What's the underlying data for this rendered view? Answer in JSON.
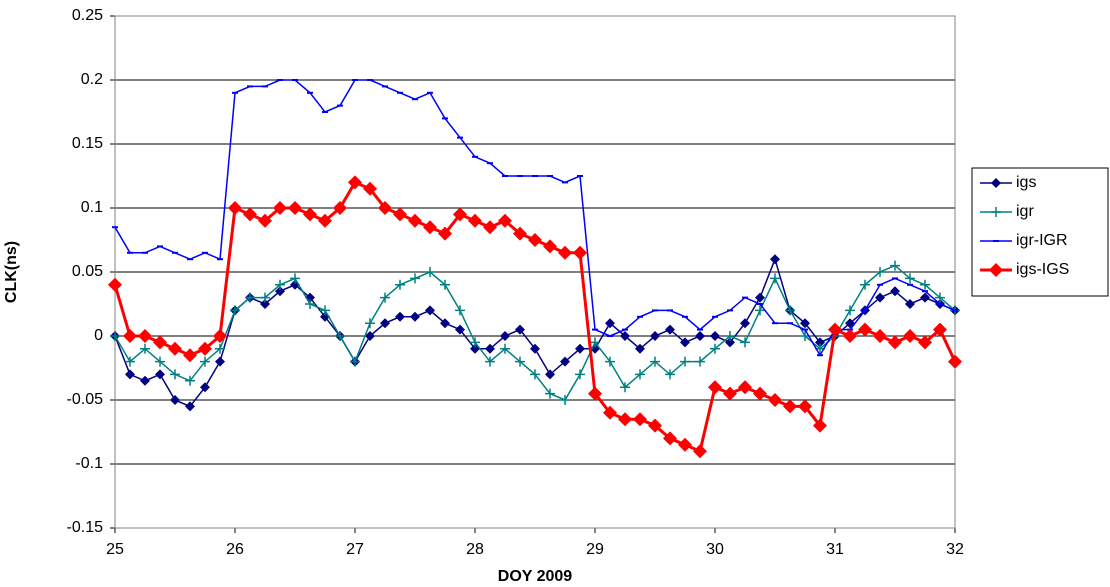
{
  "chart_data": {
    "type": "line",
    "xlabel": "DOY 2009",
    "ylabel": "CLK(ns)",
    "x": [
      25,
      25.125,
      25.25,
      25.375,
      25.5,
      25.625,
      25.75,
      25.875,
      26,
      26.125,
      26.25,
      26.375,
      26.5,
      26.625,
      26.75,
      26.875,
      27,
      27.125,
      27.25,
      27.375,
      27.5,
      27.625,
      27.75,
      27.875,
      28,
      28.125,
      28.25,
      28.375,
      28.5,
      28.625,
      28.75,
      28.875,
      29,
      29.125,
      29.25,
      29.375,
      29.5,
      29.625,
      29.75,
      29.875,
      30,
      30.125,
      30.25,
      30.375,
      30.5,
      30.625,
      30.75,
      30.875,
      31,
      31.125,
      31.25,
      31.375,
      31.5,
      31.625,
      31.75,
      31.875,
      32
    ],
    "series": [
      {
        "name": "igs",
        "color": "#000080",
        "marker": "diamond",
        "values": [
          0,
          -0.03,
          -0.035,
          -0.03,
          -0.05,
          -0.055,
          -0.04,
          -0.02,
          0.02,
          0.03,
          0.025,
          0.035,
          0.04,
          0.03,
          0.015,
          0,
          -0.02,
          0,
          0.01,
          0.015,
          0.015,
          0.02,
          0.01,
          0.005,
          -0.01,
          -0.01,
          0,
          0.005,
          -0.01,
          -0.03,
          -0.02,
          -0.01,
          -0.01,
          0.01,
          0,
          -0.01,
          0,
          0.005,
          -0.005,
          0,
          0,
          -0.005,
          0.01,
          0.03,
          0.06,
          0.02,
          0.01,
          -0.005,
          0,
          0.01,
          0.02,
          0.03,
          0.035,
          0.025,
          0.03,
          0.025,
          0.02
        ]
      },
      {
        "name": "igr",
        "color": "#008080",
        "marker": "plus",
        "values": [
          0,
          -0.02,
          -0.01,
          -0.02,
          -0.03,
          -0.035,
          -0.02,
          -0.01,
          0.02,
          0.03,
          0.03,
          0.04,
          0.045,
          0.025,
          0.02,
          0,
          -0.02,
          0.01,
          0.03,
          0.04,
          0.045,
          0.05,
          0.04,
          0.02,
          -0.005,
          -0.02,
          -0.01,
          -0.02,
          -0.03,
          -0.045,
          -0.05,
          -0.03,
          -0.005,
          -0.02,
          -0.04,
          -0.03,
          -0.02,
          -0.03,
          -0.02,
          -0.02,
          -0.01,
          0,
          -0.005,
          0.02,
          0.045,
          0.02,
          0,
          -0.01,
          0,
          0.02,
          0.04,
          0.05,
          0.055,
          0.045,
          0.04,
          0.03,
          0.02
        ]
      },
      {
        "name": "igr-IGR",
        "color": "#0000ff",
        "marker": "dash",
        "values": [
          0.085,
          0.065,
          0.065,
          0.07,
          0.065,
          0.06,
          0.065,
          0.06,
          0.19,
          0.195,
          0.195,
          0.2,
          0.2,
          0.19,
          0.175,
          0.18,
          0.2,
          0.2,
          0.195,
          0.19,
          0.185,
          0.19,
          0.17,
          0.155,
          0.14,
          0.135,
          0.125,
          0.125,
          0.125,
          0.125,
          0.12,
          0.125,
          0.005,
          0,
          0.005,
          0.015,
          0.02,
          0.02,
          0.015,
          0.005,
          0.015,
          0.02,
          0.03,
          0.025,
          0.01,
          0.01,
          0.005,
          -0.015,
          0.005,
          0.005,
          0.02,
          0.04,
          0.045,
          0.04,
          0.035,
          0.025,
          0.02
        ]
      },
      {
        "name": "igs-IGS",
        "color": "#ff0000",
        "marker": "diamond",
        "values": [
          0.04,
          0,
          0,
          -0.005,
          -0.01,
          -0.015,
          -0.01,
          0,
          0.1,
          0.095,
          0.09,
          0.1,
          0.1,
          0.095,
          0.09,
          0.1,
          0.12,
          0.115,
          0.1,
          0.095,
          0.09,
          0.085,
          0.08,
          0.095,
          0.09,
          0.085,
          0.09,
          0.08,
          0.075,
          0.07,
          0.065,
          0.065,
          -0.045,
          -0.06,
          -0.065,
          -0.065,
          -0.07,
          -0.08,
          -0.085,
          -0.09,
          -0.04,
          -0.045,
          -0.04,
          -0.045,
          -0.05,
          -0.055,
          -0.055,
          -0.07,
          0.005,
          0,
          0.005,
          0,
          -0.005,
          0,
          -0.005,
          0.005,
          -0.02
        ]
      }
    ],
    "xlim": [
      25,
      32
    ],
    "xticks": [
      25,
      26,
      27,
      28,
      29,
      30,
      31,
      32
    ],
    "ylim": [
      -0.15,
      0.25
    ],
    "yticks": [
      0.25,
      0.2,
      0.15,
      0.1,
      0.05,
      0,
      -0.05,
      -0.1,
      -0.15
    ],
    "grid": true,
    "legend": "right"
  }
}
